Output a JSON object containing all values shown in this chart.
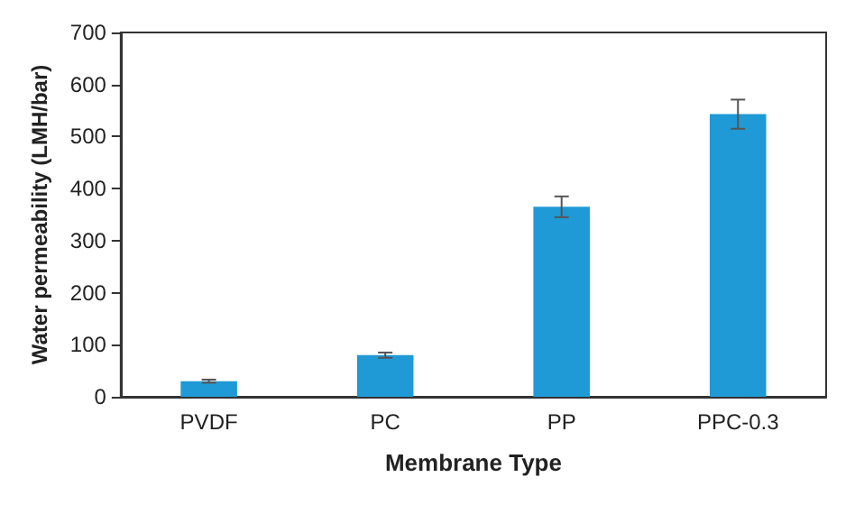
{
  "chart_data": {
    "type": "bar",
    "xlabel": "Membrane Type",
    "ylabel": "Water permeability (LMH/bar)",
    "categories": [
      "PVDF",
      "PC",
      "PP",
      "PPC-0.3"
    ],
    "values": [
      30,
      80,
      365,
      543
    ],
    "errors": [
      3,
      5,
      20,
      28
    ],
    "color": "#1f9ad6",
    "ylim": [
      0,
      700
    ],
    "yticks": [
      0,
      100,
      200,
      300,
      400,
      500,
      600,
      700
    ],
    "grid": false
  }
}
